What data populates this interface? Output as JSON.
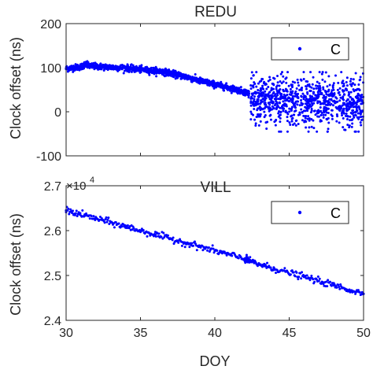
{
  "chart_data": [
    {
      "type": "scatter",
      "title": "REDU",
      "ylabel": "Clock offset (ns)",
      "xlabel": "",
      "xlim": [
        30,
        50
      ],
      "ylim": [
        -100,
        200
      ],
      "yticks": [
        -100,
        0,
        100,
        200
      ],
      "xticks": [],
      "legend": {
        "entries": [
          "C"
        ],
        "placement": "top-right"
      },
      "series": [
        {
          "name": "C",
          "color": "#0000ff",
          "marker": "dot",
          "x": [
            30.0,
            30.5,
            31.0,
            31.3,
            31.5,
            32.0,
            32.5,
            33.0,
            33.5,
            34.0,
            34.5,
            35.0,
            35.5,
            36.0,
            36.5,
            37.0,
            37.5,
            38.0,
            38.5,
            39.0,
            39.5,
            40.0,
            40.5,
            41.0,
            41.5,
            42.0,
            42.3
          ],
          "y": [
            98,
            100,
            102,
            108,
            104,
            103,
            102,
            101,
            100,
            100,
            97,
            96,
            94,
            93,
            91,
            88,
            83,
            80,
            75,
            70,
            66,
            62,
            58,
            54,
            50,
            45,
            41
          ]
        },
        {
          "name": "C",
          "color": "#0000ff",
          "marker": "dot",
          "note_scatter_band": true,
          "x_range": [
            42.4,
            50.0
          ],
          "center_y": [
            30,
            20
          ],
          "spread_y": [
            -45,
            90
          ]
        }
      ]
    },
    {
      "type": "scatter",
      "title": "VILL",
      "ylabel": "Clock offset (ns)",
      "xlabel": "DOY",
      "multiplier_label": "×10",
      "multiplier_exp": "4",
      "xlim": [
        30,
        50
      ],
      "ylim": [
        2.4,
        2.7
      ],
      "yticks": [
        2.4,
        2.5,
        2.6,
        2.7
      ],
      "xticks": [
        30,
        35,
        40,
        45,
        50
      ],
      "legend": {
        "entries": [
          "C"
        ],
        "placement": "top-right"
      },
      "series": [
        {
          "name": "C",
          "color": "#0000ff",
          "marker": "dot",
          "x": [
            30,
            32,
            34,
            36,
            38,
            40,
            42,
            42.4,
            44,
            46,
            48,
            50
          ],
          "y": [
            2.645,
            2.627,
            2.609,
            2.591,
            2.573,
            2.555,
            2.537,
            2.531,
            2.515,
            2.497,
            2.478,
            2.459
          ]
        }
      ]
    }
  ]
}
